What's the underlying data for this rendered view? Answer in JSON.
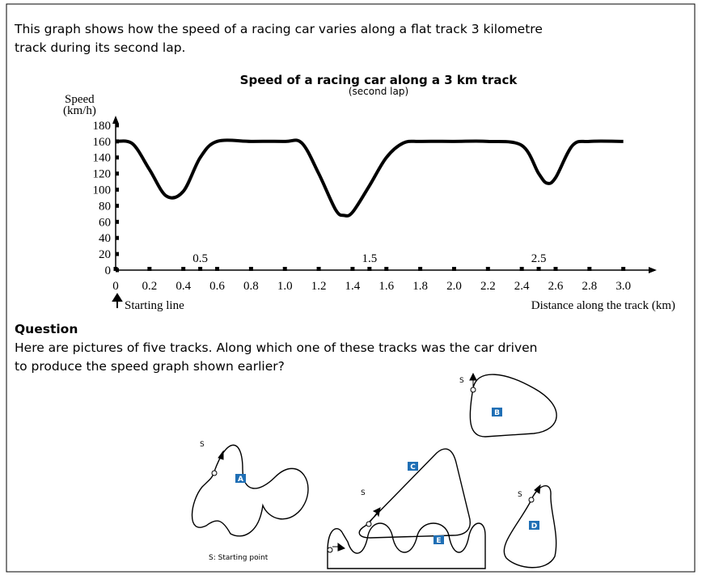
{
  "intro": [
    "This graph shows how the speed of a racing car varies along a flat track 3 kilometre",
    "track during its second lap."
  ],
  "graph": {
    "type": "line",
    "title": "Speed of a racing car along a 3 km track",
    "subtitle": "(second lap)",
    "y_label": [
      "Speed",
      "(km/h)"
    ],
    "x_label": "Distance along the track (km)",
    "start_label": "Starting line",
    "x": [
      0,
      0.1,
      0.2,
      0.3,
      0.4,
      0.5,
      0.6,
      0.8,
      1.0,
      1.1,
      1.2,
      1.3,
      1.35,
      1.4,
      1.5,
      1.6,
      1.7,
      1.8,
      2.0,
      2.2,
      2.4,
      2.5,
      2.55,
      2.6,
      2.7,
      2.8,
      3.0
    ],
    "values": [
      160,
      157,
      125,
      92,
      98,
      140,
      160,
      160,
      160,
      158,
      120,
      75,
      68,
      72,
      105,
      140,
      158,
      160,
      160,
      160,
      155,
      120,
      108,
      115,
      155,
      160,
      160
    ],
    "color": "#000000",
    "xlim": [
      0,
      3.14
    ],
    "ylim": [
      0,
      190
    ],
    "yticks": [
      0,
      20,
      40,
      60,
      80,
      100,
      120,
      140,
      160,
      180
    ],
    "xticks": [
      0,
      0.2,
      0.4,
      0.6,
      0.8,
      {
        "value": 1,
        "label": "1.0"
      },
      1.2,
      1.4,
      1.6,
      1.8,
      {
        "value": 2,
        "label": "2.0"
      },
      2.2,
      2.4,
      2.6,
      2.8,
      {
        "value": 3,
        "label": "3.0"
      }
    ],
    "xticks_upper": [
      0.5,
      1.5,
      2.5
    ]
  },
  "question": {
    "heading": "Question",
    "lines": [
      "Here are pictures of five tracks. Along which one of these tracks was the car driven",
      "to produce the speed graph shown earlier?"
    ]
  },
  "tracks": [
    {
      "label": "A",
      "start": "S"
    },
    {
      "label": "B",
      "start": "S"
    },
    {
      "label": "C",
      "start": "S"
    },
    {
      "label": "D",
      "start": "S"
    },
    {
      "label": "E"
    }
  ],
  "legend": "S: Starting point"
}
